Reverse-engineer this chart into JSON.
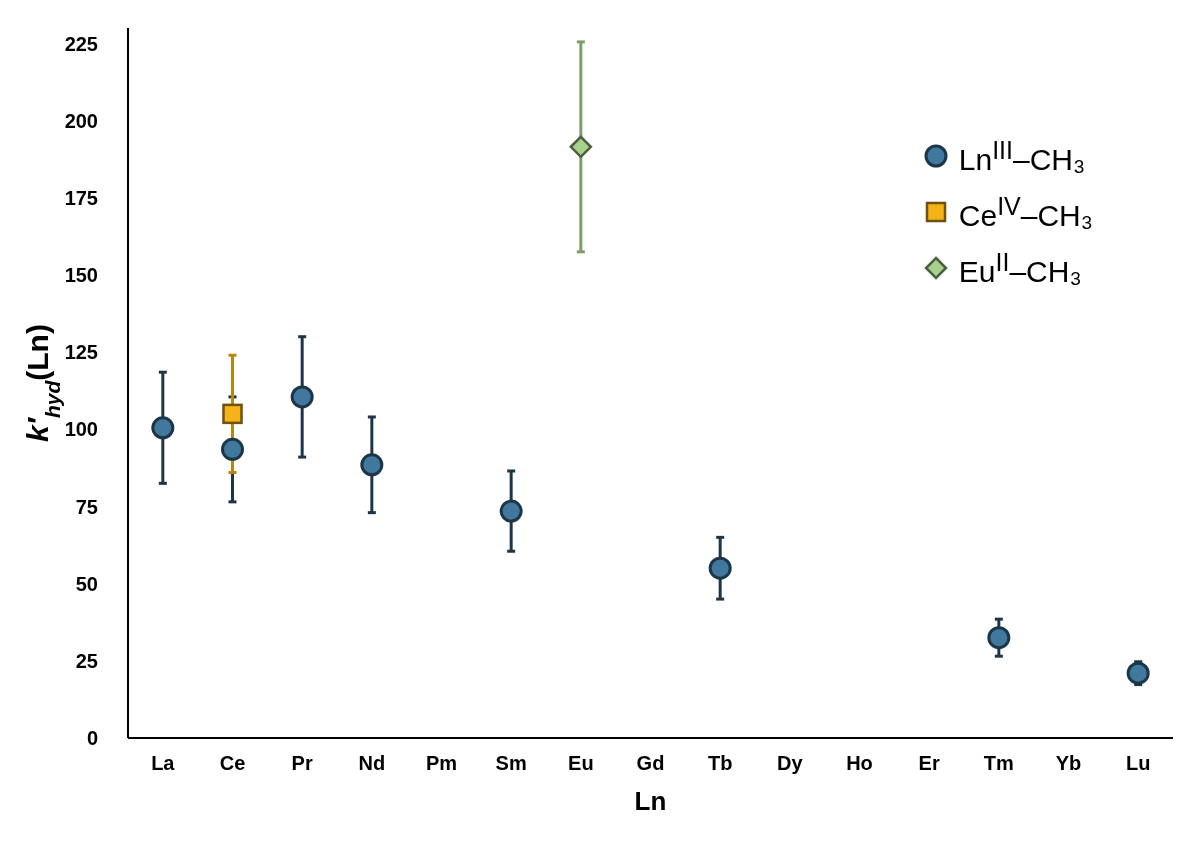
{
  "chart_data": {
    "type": "scatter",
    "xlabel": "Ln",
    "ylabel": "k′$_{hyd}$(Ln)",
    "categories": [
      "La",
      "Ce",
      "Pr",
      "Nd",
      "Pm",
      "Sm",
      "Eu",
      "Gd",
      "Tb",
      "Dy",
      "Ho",
      "Er",
      "Tm",
      "Yb",
      "Lu"
    ],
    "series": [
      {
        "name": "Ln$^{III}$–CH₃",
        "color": "#41799e",
        "marker": "circle",
        "values": [
          100.5,
          93.5,
          110.5,
          88.5,
          null,
          73.5,
          null,
          null,
          55,
          null,
          null,
          null,
          32.5,
          null,
          21
        ],
        "errors": [
          18,
          17,
          19.5,
          15.5,
          null,
          13,
          null,
          null,
          10,
          null,
          null,
          null,
          6,
          null,
          3.7
        ]
      },
      {
        "name": "Ce$^{IV}$–CH₃",
        "color": "#f5b317",
        "marker": "square",
        "values": [
          null,
          105,
          null,
          null,
          null,
          null,
          null,
          null,
          null,
          null,
          null,
          null,
          null,
          null,
          null
        ],
        "errors": [
          null,
          19,
          null,
          null,
          null,
          null,
          null,
          null,
          null,
          null,
          null,
          null,
          null,
          null,
          null
        ]
      },
      {
        "name": "Eu$^{II}$–CH₃",
        "color": "#a9d18e",
        "marker": "diamond",
        "values": [
          null,
          null,
          null,
          null,
          null,
          null,
          191.5,
          null,
          null,
          null,
          null,
          null,
          null,
          null,
          null
        ],
        "errors": [
          null,
          null,
          null,
          null,
          null,
          null,
          34,
          null,
          null,
          null,
          null,
          null,
          null,
          null,
          null
        ]
      }
    ],
    "ylim": [
      0,
      230
    ],
    "yticks": [
      0,
      25,
      50,
      75,
      100,
      125,
      150,
      175,
      200,
      225
    ],
    "grid": false,
    "legend": "top right"
  }
}
